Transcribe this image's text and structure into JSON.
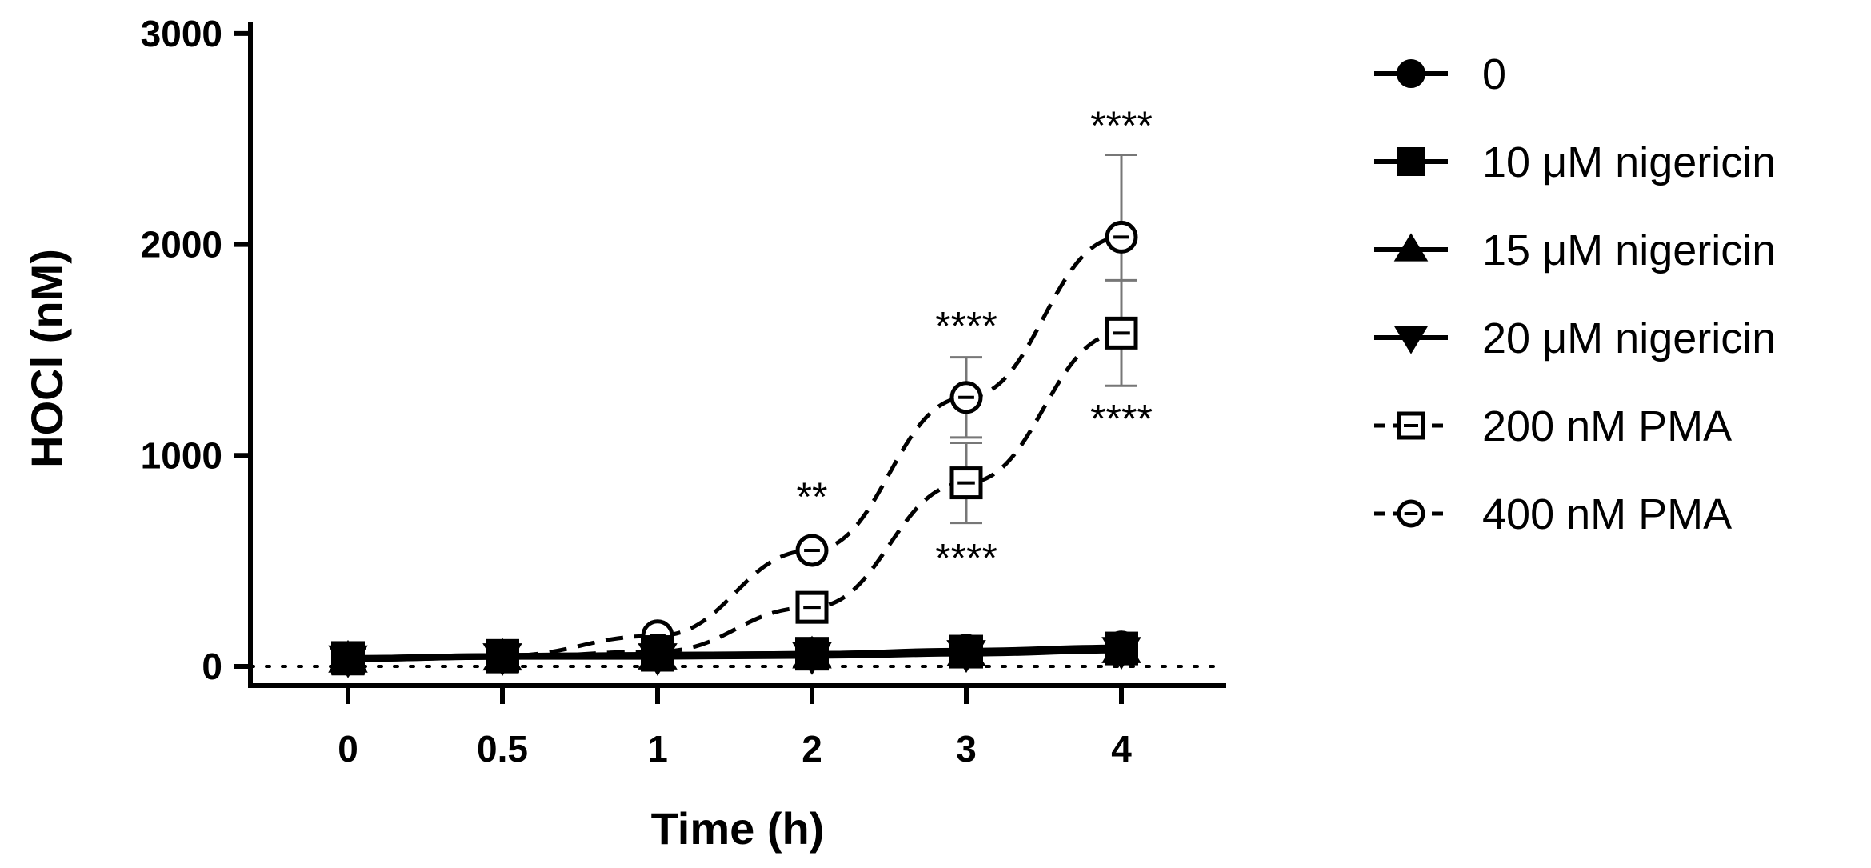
{
  "chart_data": {
    "type": "line",
    "title": "",
    "xlabel": "Time (h)",
    "ylabel": "HOCl (nM)",
    "x": [
      0,
      0.5,
      1,
      2,
      3,
      4
    ],
    "x_tick_labels": [
      "0",
      "0.5",
      "1",
      "2",
      "3",
      "4"
    ],
    "y_ticks": [
      0,
      1000,
      2000,
      3000
    ],
    "y_tick_labels": [
      "0",
      "1000",
      "2000",
      "3000"
    ],
    "ylim": [
      -100,
      3000
    ],
    "baseline": 0,
    "legend_position": "right",
    "series": [
      {
        "name": "0",
        "marker": "circle",
        "filled": true,
        "dashed": false,
        "color": "#000000",
        "values": [
          40,
          50,
          55,
          60,
          75,
          90
        ],
        "err": [
          0,
          0,
          0,
          0,
          0,
          0
        ]
      },
      {
        "name": "10 μM nigericin",
        "marker": "square",
        "filled": true,
        "dashed": false,
        "color": "#000000",
        "values": [
          40,
          50,
          55,
          60,
          70,
          85
        ],
        "err": [
          0,
          0,
          0,
          0,
          0,
          0
        ]
      },
      {
        "name": "15 μM nigericin",
        "marker": "triangle-up",
        "filled": true,
        "dashed": false,
        "color": "#000000",
        "values": [
          35,
          45,
          50,
          55,
          65,
          80
        ],
        "err": [
          0,
          0,
          0,
          0,
          0,
          0
        ]
      },
      {
        "name": "20 μM nigericin",
        "marker": "triangle-down",
        "filled": true,
        "dashed": false,
        "color": "#000000",
        "values": [
          35,
          45,
          45,
          50,
          60,
          75
        ],
        "err": [
          0,
          0,
          0,
          0,
          0,
          0
        ]
      },
      {
        "name": "200 nM PMA",
        "marker": "square",
        "filled": false,
        "dashed": true,
        "color": "#000000",
        "values": [
          35,
          45,
          70,
          280,
          870,
          1580
        ],
        "err": [
          0,
          0,
          0,
          0,
          190,
          250
        ]
      },
      {
        "name": "400 nM PMA",
        "marker": "circle",
        "filled": false,
        "dashed": true,
        "color": "#000000",
        "values": [
          40,
          50,
          145,
          550,
          1275,
          2035
        ],
        "err": [
          0,
          0,
          0,
          0,
          190,
          390
        ]
      }
    ],
    "annotations": [
      {
        "text": "**",
        "x": 2,
        "y": 800
      },
      {
        "text": "****",
        "x": 3,
        "y": 1610
      },
      {
        "text": "****",
        "x": 3,
        "y": 510
      },
      {
        "text": "****",
        "x": 4,
        "y": 2560
      },
      {
        "text": "****",
        "x": 4,
        "y": 1170
      }
    ]
  }
}
